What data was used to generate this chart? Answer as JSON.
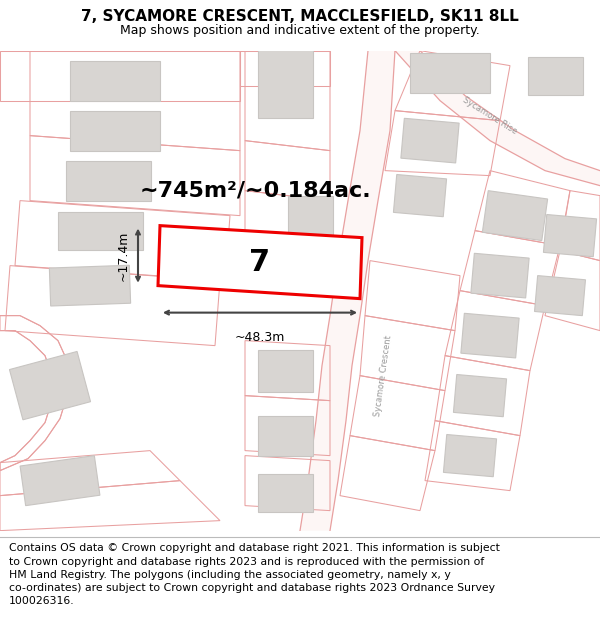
{
  "title": "7, SYCAMORE CRESCENT, MACCLESFIELD, SK11 8LL",
  "subtitle": "Map shows position and indicative extent of the property.",
  "footer": "Contains OS data © Crown copyright and database right 2021. This information is subject\nto Crown copyright and database rights 2023 and is reproduced with the permission of\nHM Land Registry. The polygons (including the associated geometry, namely x, y\nco-ordinates) are subject to Crown copyright and database rights 2023 Ordnance Survey\n100026316.",
  "area_label": "~745m²/~0.184ac.",
  "width_label": "~48.3m",
  "height_label": "~17.4m",
  "plot_number": "7",
  "bg_white": "#ffffff",
  "map_bg": "#ffffff",
  "road_line_color": "#e8a0a0",
  "plot_line_color": "#e8a0a0",
  "building_fill": "#d8d5d2",
  "building_edge": "#c8c5c2",
  "highlight_color": "#ee0000",
  "highlight_lw": 2.2,
  "dim_color": "#444444",
  "title_fontsize": 11,
  "subtitle_fontsize": 9,
  "footer_fontsize": 7.8,
  "area_fontsize": 16,
  "number_fontsize": 22,
  "dim_fontsize": 9
}
